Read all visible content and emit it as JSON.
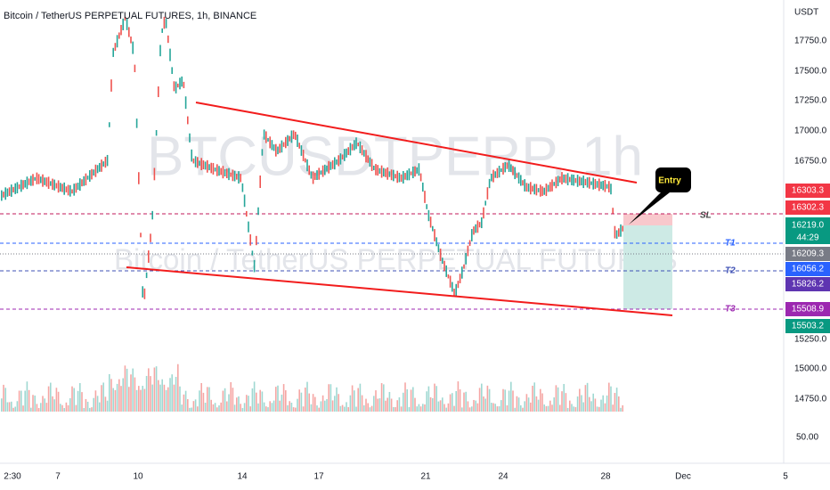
{
  "header": {
    "title": "Bitcoin / TetherUS PERPETUAL FUTURES, 1h, BINANCE",
    "watermark_symbol": "BTCUSDTPERP, 1h",
    "watermark_name": "Bitcoin / TetherUS PERPETUAL FUTURES"
  },
  "price_axis": {
    "unit": "USDT",
    "labels": [
      "17750.0",
      "17500.0",
      "17250.0",
      "17000.0",
      "16750.0",
      "15250.0",
      "15000.0",
      "14750.0",
      "50.00"
    ]
  },
  "time_axis": {
    "labels": [
      "2:30",
      "7",
      "10",
      "14",
      "17",
      "21",
      "24",
      "28",
      "Dec",
      "5"
    ]
  },
  "price_tags": [
    "16303.3",
    "16302.3",
    "16219.0",
    "16209.3",
    "16056.2",
    "15826.2",
    "15508.9",
    "15503.2"
  ],
  "countdown": "44:29",
  "annotations": {
    "entry": "Entry",
    "sl": "SL",
    "t1": "T1",
    "t2": "T2",
    "t3": "T3"
  }
}
